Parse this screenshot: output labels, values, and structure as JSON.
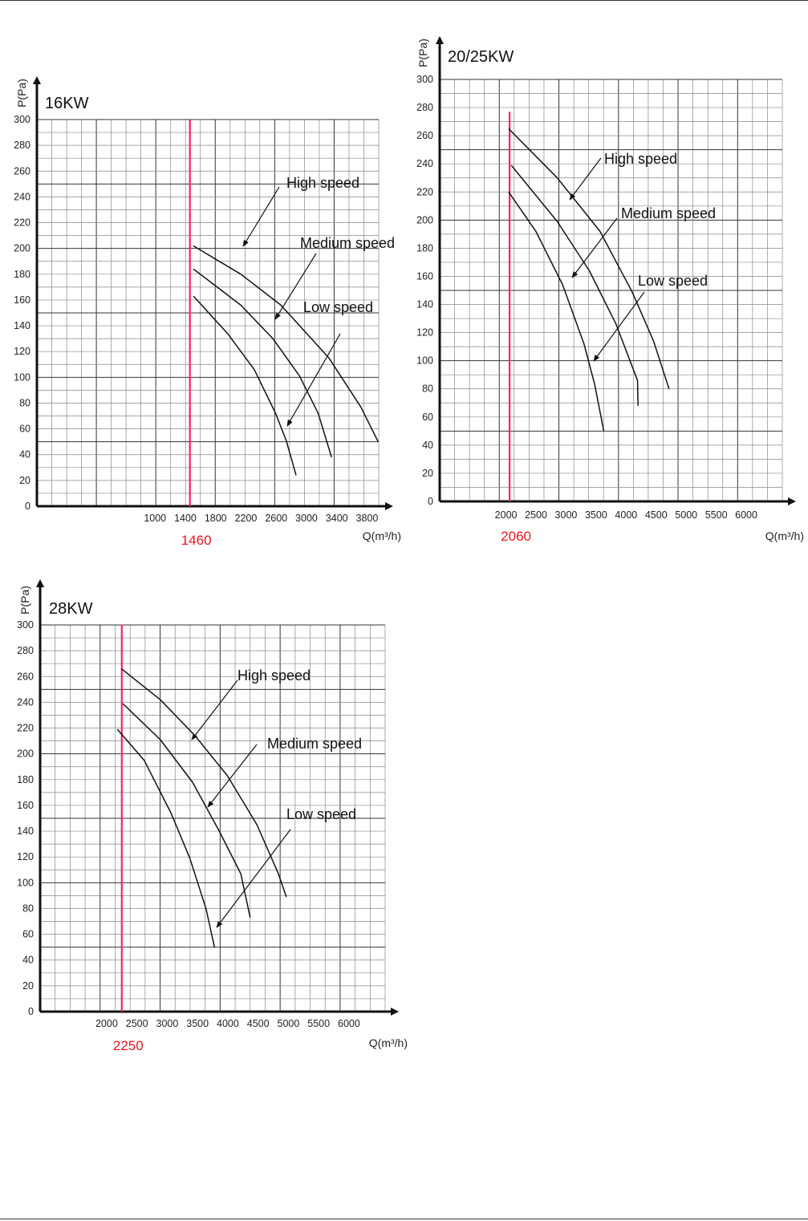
{
  "chart_data": [
    {
      "type": "line",
      "title": "16KW",
      "xlabel": "Q(m³/h)",
      "ylabel": "P(Pa)",
      "xlim": [
        -560,
        3954
      ],
      "ylim": [
        0,
        300
      ],
      "grid": true,
      "x_ticks": [
        1000,
        1400,
        1800,
        2200,
        2600,
        3000,
        3400,
        3800
      ],
      "y_ticks": [
        0,
        20,
        40,
        60,
        80,
        100,
        120,
        140,
        160,
        180,
        200,
        220,
        240,
        260,
        280,
        300
      ],
      "reference_line": {
        "x": 1460,
        "label": "1460",
        "color": "#ff1a75"
      },
      "series": [
        {
          "name": "High speed",
          "x": [
            1507,
            2134,
            2662,
            3296,
            3718,
            3947
          ],
          "y": [
            202,
            180,
            156,
            115,
            77,
            50
          ]
        },
        {
          "name": "Medium speed",
          "x": [
            1507,
            2134,
            2556,
            2908,
            3155,
            3331
          ],
          "y": [
            184,
            156,
            130,
            101,
            72,
            38
          ]
        },
        {
          "name": "Low speed",
          "x": [
            1507,
            1958,
            2310,
            2592,
            2732,
            2863
          ],
          "y": [
            163,
            134,
            106,
            72,
            51,
            24
          ]
        }
      ]
    },
    {
      "type": "line",
      "title": "20/25KW",
      "xlabel": "Q(m³/h)",
      "ylabel": "P(Pa)",
      "xlim": [
        897,
        6600
      ],
      "ylim": [
        0,
        300
      ],
      "grid": true,
      "x_ticks": [
        2000,
        2500,
        3000,
        3500,
        4000,
        4500,
        5000,
        5500,
        6000
      ],
      "y_ticks": [
        0,
        20,
        40,
        60,
        80,
        100,
        120,
        140,
        160,
        180,
        200,
        220,
        240,
        260,
        280,
        300
      ],
      "reference_line": {
        "x": 2060,
        "label": "2060",
        "color": "#ff1a75",
        "top": 277
      },
      "series": [
        {
          "name": "High speed",
          "x": [
            2044,
            2854,
            3566,
            4100,
            4456,
            4714
          ],
          "y": [
            265,
            230,
            192,
            149,
            114,
            80
          ]
        },
        {
          "name": "Medium speed",
          "x": [
            2089,
            2854,
            3388,
            3833,
            4189,
            4198
          ],
          "y": [
            239,
            199,
            164,
            126,
            86,
            68
          ]
        },
        {
          "name": "Low speed",
          "x": [
            2044,
            2498,
            2943,
            3299,
            3477,
            3628
          ],
          "y": [
            220,
            192,
            154,
            112,
            83,
            50
          ]
        }
      ]
    },
    {
      "type": "line",
      "title": "28KW",
      "xlabel": "Q(m³/h)",
      "ylabel": "P(Pa)",
      "xlim": [
        902,
        6597
      ],
      "ylim": [
        0,
        300
      ],
      "grid": true,
      "x_ticks": [
        2000,
        2500,
        3000,
        3500,
        4000,
        4500,
        5000,
        5500,
        6000
      ],
      "y_ticks": [
        0,
        20,
        40,
        60,
        80,
        100,
        120,
        140,
        160,
        180,
        200,
        220,
        240,
        260,
        280,
        300
      ],
      "reference_line": {
        "x": 2250,
        "label": "2250",
        "color": "#ff1a75"
      },
      "series": [
        {
          "name": "High speed",
          "x": [
            2244,
            2886,
            3461,
            3993,
            4480,
            4834,
            4967
          ],
          "y": [
            266,
            242,
            214,
            183,
            145,
            107,
            89
          ]
        },
        {
          "name": "Medium speed",
          "x": [
            2266,
            2886,
            3417,
            3860,
            4214,
            4369
          ],
          "y": [
            239,
            211,
            178,
            140,
            107,
            73
          ]
        },
        {
          "name": "Low speed",
          "x": [
            2177,
            2620,
            3063,
            3373,
            3639,
            3780
          ],
          "y": [
            219,
            195,
            154,
            119,
            80,
            50
          ]
        }
      ]
    }
  ]
}
